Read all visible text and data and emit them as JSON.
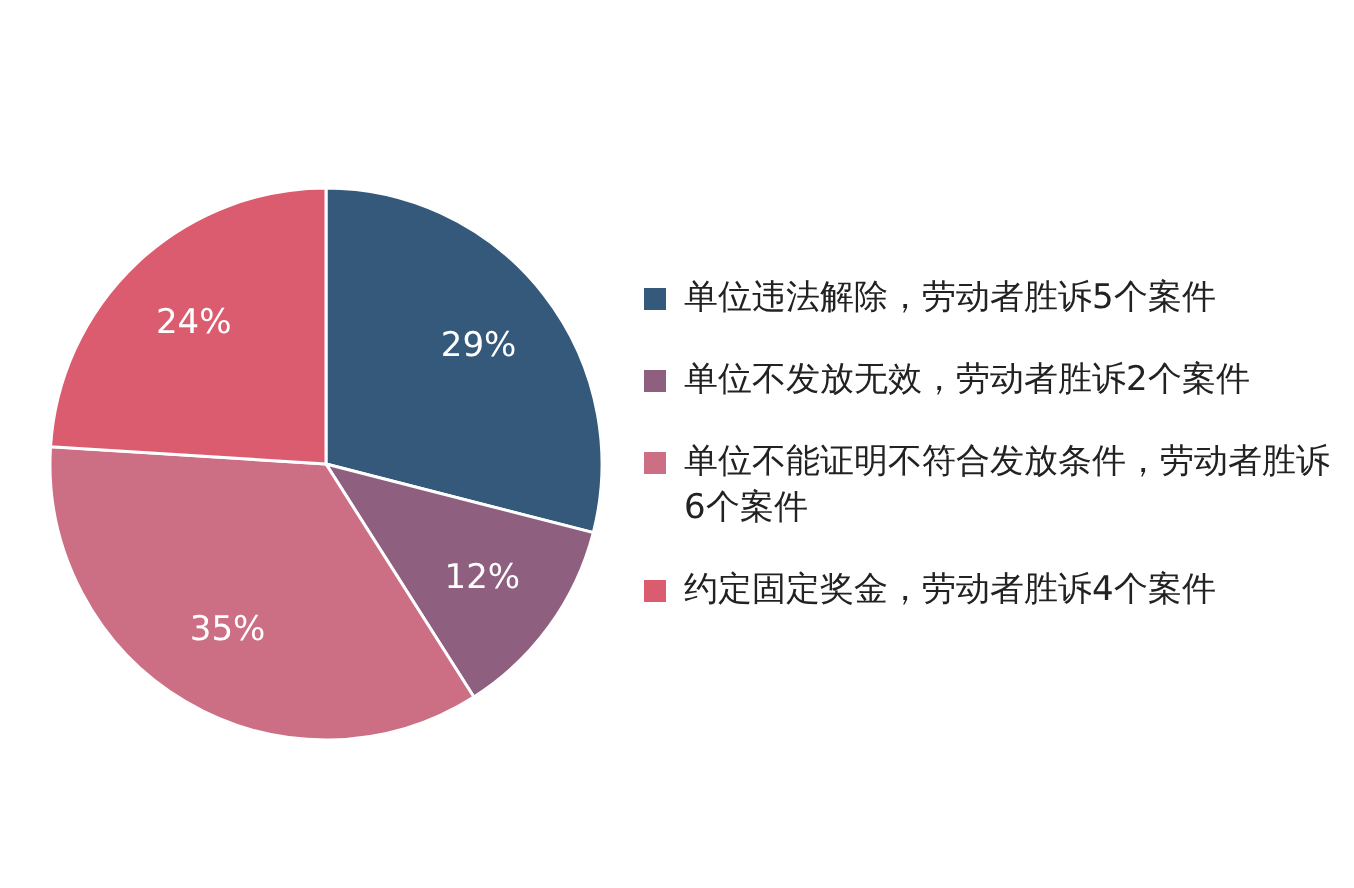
{
  "chart_data": {
    "type": "pie",
    "categories": [
      "单位违法解除，劳动者胜诉5个案件",
      "单位不发放无效，劳动者胜诉2个案件",
      "单位不能证明不符合发放条件，劳动者胜诉6个案件",
      "约定固定奖金，劳动者胜诉4个案件"
    ],
    "values": [
      29,
      12,
      35,
      24
    ],
    "colors": [
      "#35597b",
      "#8f5f80",
      "#cc6f84",
      "#dc5c6f"
    ],
    "value_labels": [
      "29%",
      "12%",
      "35%",
      "24%"
    ],
    "legend": "right"
  }
}
